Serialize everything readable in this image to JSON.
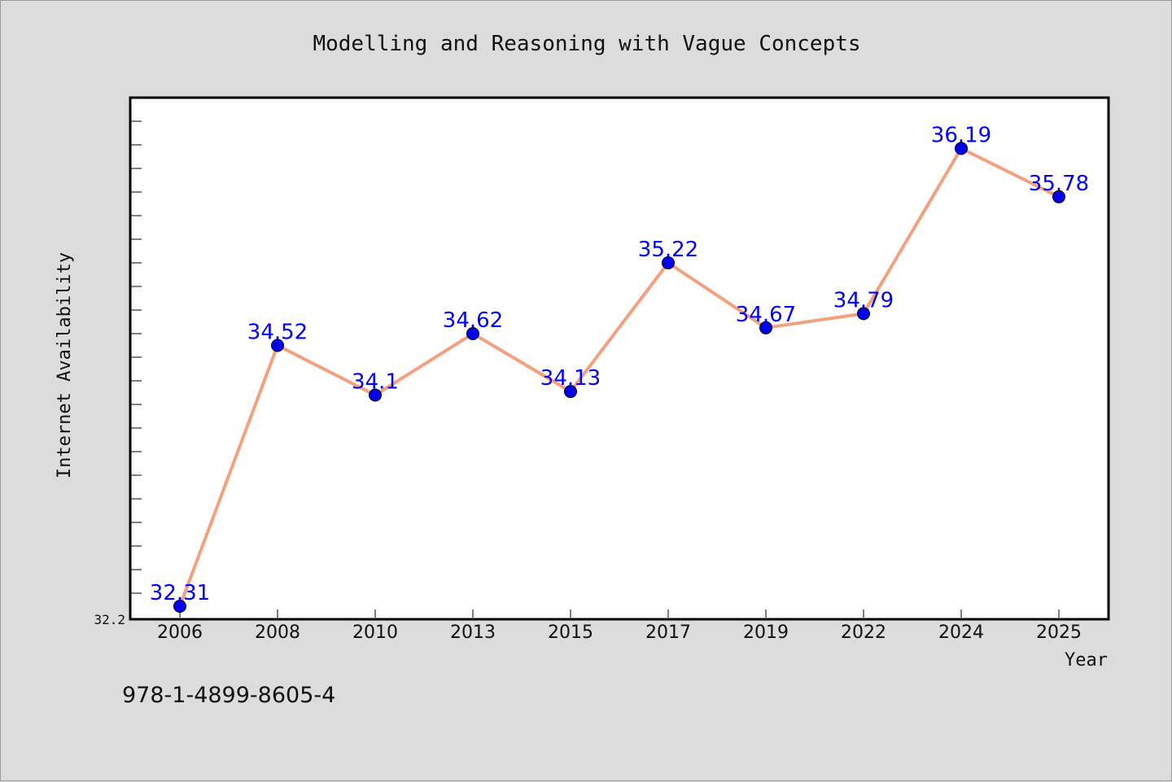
{
  "chart_data": {
    "type": "line",
    "title": "Modelling and Reasoning with Vague Concepts",
    "xlabel": "Year",
    "ylabel": "Internet Availability",
    "categories": [
      "2006",
      "2008",
      "2010",
      "2013",
      "2015",
      "2017",
      "2019",
      "2022",
      "2024",
      "2025"
    ],
    "series": [
      {
        "values": [
          32.31,
          34.52,
          34.1,
          34.62,
          34.13,
          35.22,
          34.67,
          34.79,
          36.19,
          35.78
        ],
        "data_labels": [
          "32.31",
          "34.52",
          "34.1",
          "34.62",
          "34.13",
          "35.22",
          "34.67",
          "34.79",
          "36.19",
          "35.78"
        ],
        "line_color": "#f4a07e",
        "marker_color": "#0000ee"
      }
    ],
    "ylim": [
      32.2,
      36.62
    ],
    "y_min_label": "32.2",
    "grid": false,
    "legend": "none"
  },
  "footer": {
    "text": "978-1-4899-8605-4"
  },
  "colors": {
    "background": "#dcdcdc",
    "plot_background": "#ffffff",
    "data_label": "#0000ff"
  }
}
